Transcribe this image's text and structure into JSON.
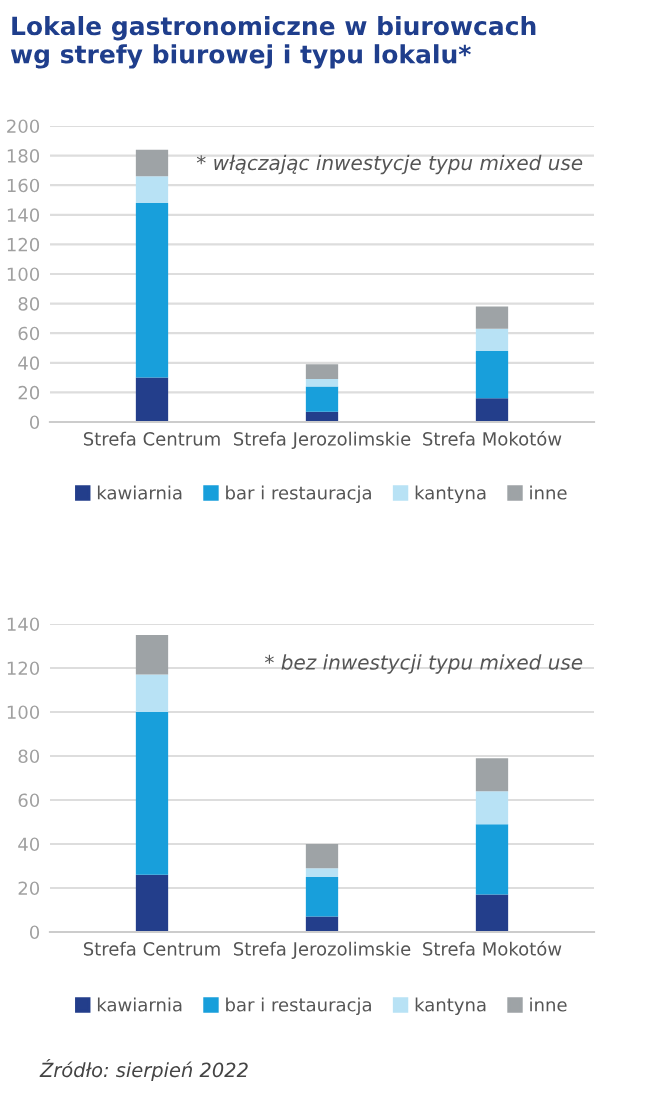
{
  "chart_data": [
    {
      "type": "bar",
      "stacked": true,
      "title": "Lokale gastronomiczne w biurowcach\nwg strefy biurowej i typu lokalu*",
      "categories": [
        "Strefa Centrum",
        "Strefa Jerozolimskie",
        "Strefa Mokotów"
      ],
      "series": [
        {
          "name": "kawiarnia",
          "color": "#233e8b",
          "values": [
            30,
            7,
            16
          ]
        },
        {
          "name": "bar i restauracja",
          "color": "#189fdb",
          "values": [
            118,
            17,
            32
          ]
        },
        {
          "name": "kantyna",
          "color": "#b8e2f5",
          "values": [
            18,
            5,
            15
          ]
        },
        {
          "name": "inne",
          "color": "#9ea3a6",
          "values": [
            18,
            10,
            15
          ]
        }
      ],
      "ylim": [
        0,
        200
      ],
      "yticks": [
        0,
        20,
        40,
        60,
        80,
        100,
        120,
        140,
        160,
        180,
        200
      ],
      "grid": "y",
      "legend": "bottom",
      "annotations": [
        "* włączając inwestycje typu mixed use"
      ]
    },
    {
      "type": "bar",
      "stacked": true,
      "categories": [
        "Strefa Centrum",
        "Strefa Jerozolimskie",
        "Strefa Mokotów"
      ],
      "series": [
        {
          "name": "kawiarnia",
          "color": "#233e8b",
          "values": [
            26,
            7,
            17
          ]
        },
        {
          "name": "bar i restauracja",
          "color": "#189fdb",
          "values": [
            74,
            18,
            32
          ]
        },
        {
          "name": "kantyna",
          "color": "#b8e2f5",
          "values": [
            17,
            4,
            15
          ]
        },
        {
          "name": "inne",
          "color": "#9ea3a6",
          "values": [
            18,
            11,
            15
          ]
        }
      ],
      "ylim": [
        0,
        140
      ],
      "yticks": [
        0,
        20,
        40,
        60,
        80,
        100,
        120,
        140
      ],
      "grid": "y",
      "legend": "bottom",
      "annotations": [
        "* bez inwestycji typu mixed use",
        "Źródło: sierpień 2022"
      ]
    }
  ]
}
